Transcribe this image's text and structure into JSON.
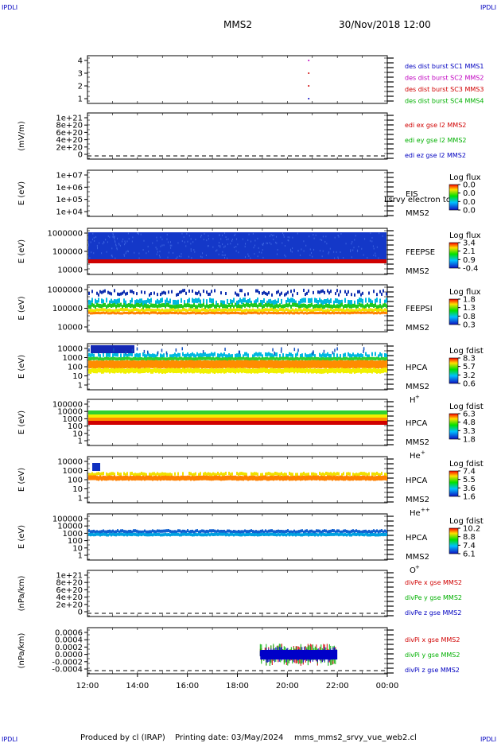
{
  "header": {
    "corner_left_top": "IPDLI",
    "corner_right_top": "IPDLI",
    "corner_left_bottom": "IPDLI",
    "corner_right_bottom": "IPDLI",
    "title": "MMS2",
    "date": "30/Nov/2018 12:00"
  },
  "footer": {
    "produced": "Produced by cl (IRAP)",
    "printing": "Printing date: 03/May/2024",
    "script": "mms_mms2_srvy_vue_web2.cl"
  },
  "colors": {
    "spec_low": "#0000c8",
    "spec_mid": "#00d000",
    "spec_high": "#ff0000",
    "red": "#d00000",
    "green": "#00b000",
    "blue": "#0000c0",
    "magenta": "#c000c0"
  },
  "chart_data": [
    {
      "type": "scatter",
      "panel": "burst",
      "xlim": [
        "12:00",
        "00:00"
      ],
      "ylim": [
        0.5,
        4.5
      ],
      "yticks": [
        "4",
        "3",
        "2",
        "1"
      ],
      "xticks": [
        "12:00",
        "14:00",
        "16:00",
        "18:00",
        "20:00",
        "22:00",
        "00:00"
      ],
      "legend": [
        {
          "name": "des dist burst SC1 MMS1",
          "color": "#0000c0"
        },
        {
          "name": "des dist burst SC2 MMS2",
          "color": "#c000c0"
        },
        {
          "name": "des dist burst SC3 MMS3",
          "color": "#d00000"
        },
        {
          "name": "des dist burst SC4 MMS4",
          "color": "#00b000"
        }
      ],
      "series": [
        {
          "name": "des dist burst SC3 MMS3",
          "x": [
            "20:50",
            "20:50"
          ],
          "values": [
            2,
            3
          ]
        },
        {
          "name": "des dist burst SC2 MMS2",
          "x": [
            "20:50"
          ],
          "values": [
            4
          ]
        },
        {
          "name": "des dist burst SC1 MMS1",
          "x": [
            "20:50"
          ],
          "values": [
            1
          ]
        }
      ]
    },
    {
      "type": "line",
      "panel": "edi",
      "ylabel": "(mV/m)",
      "yticks": [
        "1e+21",
        "8e+20",
        "6e+20",
        "4e+20",
        "2e+20",
        "0"
      ],
      "zero_line": true,
      "legend": [
        {
          "name": "edi ex gse l2 MMS2",
          "color": "#d00000"
        },
        {
          "name": "edi ey gse l2 MMS2",
          "color": "#00b000"
        },
        {
          "name": "edi ez gse l2 MMS2",
          "color": "#0000c0"
        }
      ]
    },
    {
      "type": "heatmap",
      "panel": "eis",
      "ylabel": "E (eV)",
      "yticks": [
        "1e+07",
        "1e+06",
        "1e+05",
        "1e+04"
      ],
      "instrument": "EIS",
      "overlay_text": "Lsrvy electron to",
      "spacecraft": "MMS2",
      "colorbar": {
        "title": "Log flux",
        "ticks": [
          "0.0",
          "0.0",
          "0.0",
          "0.0"
        ]
      }
    },
    {
      "type": "heatmap",
      "panel": "feepse",
      "ylabel": "E (eV)",
      "yticks": [
        "1000000",
        "100000",
        "10000"
      ],
      "instrument": "FEEPSE",
      "spacecraft": "MMS2",
      "colorbar": {
        "title": "Log flux",
        "ticks": [
          "3.4",
          "2.1",
          "0.9",
          "-0.4"
        ]
      }
    },
    {
      "type": "heatmap",
      "panel": "feepsi",
      "ylabel": "E (eV)",
      "yticks": [
        "1000000",
        "100000",
        "10000"
      ],
      "instrument": "FEEPSI",
      "spacecraft": "MMS2",
      "colorbar": {
        "title": "Log flux",
        "ticks": [
          "1.8",
          "1.3",
          "0.8",
          "0.3"
        ]
      }
    },
    {
      "type": "heatmap",
      "panel": "hpca_h",
      "ylabel": "E (eV)",
      "yticks": [
        "10000",
        "1000",
        "100",
        "10",
        "1"
      ],
      "instrument": "HPCA",
      "spacecraft": "MMS2",
      "species": "H",
      "species_charge": "+",
      "colorbar": {
        "title": "Log fdist",
        "ticks": [
          "8.3",
          "5.7",
          "3.2",
          "0.6"
        ]
      }
    },
    {
      "type": "heatmap",
      "panel": "hpca_he",
      "ylabel": "E (eV)",
      "yticks": [
        "100000",
        "10000",
        "1000",
        "100",
        "10",
        "1"
      ],
      "instrument": "HPCA",
      "spacecraft": "MMS2",
      "species": "He",
      "species_charge": "+",
      "colorbar": {
        "title": "Log fdist",
        "ticks": [
          "6.3",
          "4.8",
          "3.3",
          "1.8"
        ]
      }
    },
    {
      "type": "heatmap",
      "panel": "hpca_hepp",
      "ylabel": "E (eV)",
      "yticks": [
        "10000",
        "1000",
        "100",
        "10",
        "1"
      ],
      "instrument": "HPCA",
      "spacecraft": "MMS2",
      "species": "He",
      "species_charge": "++",
      "colorbar": {
        "title": "Log fdist",
        "ticks": [
          "7.4",
          "5.5",
          "3.6",
          "1.6"
        ]
      }
    },
    {
      "type": "heatmap",
      "panel": "hpca_o",
      "ylabel": "E (eV)",
      "yticks": [
        "100000",
        "10000",
        "1000",
        "100",
        "10",
        "1"
      ],
      "instrument": "HPCA",
      "spacecraft": "MMS2",
      "species": "O",
      "species_charge": "+",
      "colorbar": {
        "title": "Log fdist",
        "ticks": [
          "10.2",
          "8.8",
          "7.4",
          "6.1"
        ]
      }
    },
    {
      "type": "line",
      "panel": "divpe",
      "ylabel": "(nPa/km)",
      "yticks": [
        "1e+21",
        "8e+20",
        "6e+20",
        "4e+20",
        "2e+20",
        "0"
      ],
      "zero_line": true,
      "legend": [
        {
          "name": "divPe x gse MMS2",
          "color": "#d00000"
        },
        {
          "name": "divPe y gse MMS2",
          "color": "#00b000"
        },
        {
          "name": "divPe z gse MMS2",
          "color": "#0000c0"
        }
      ]
    },
    {
      "type": "line",
      "panel": "divpi",
      "ylabel": "(nPa/km)",
      "yticks": [
        "0.0006",
        "0.0004",
        "0.0002",
        "0.0000",
        "-0.0002",
        "-0.0004"
      ],
      "zero_line": true,
      "data_range_x": [
        "18:55",
        "22:00"
      ],
      "legend": [
        {
          "name": "divPi x gse MMS2",
          "color": "#d00000"
        },
        {
          "name": "divPi y gse MMS2",
          "color": "#00b000"
        },
        {
          "name": "divPi z gse MMS2",
          "color": "#0000c0"
        }
      ]
    }
  ]
}
